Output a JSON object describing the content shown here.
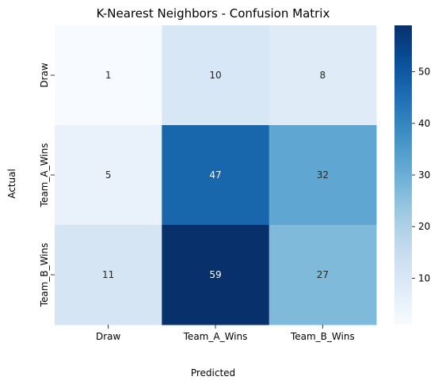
{
  "chart_data": {
    "type": "heatmap",
    "title": "K-Nearest Neighbors - Confusion Matrix",
    "xlabel": "Predicted",
    "ylabel": "Actual",
    "x_categories": [
      "Draw",
      "Team_A_Wins",
      "Team_B_Wins"
    ],
    "y_categories": [
      "Draw",
      "Team_A_Wins",
      "Team_B_Wins"
    ],
    "values": [
      [
        1,
        10,
        8
      ],
      [
        5,
        47,
        32
      ],
      [
        11,
        59,
        27
      ]
    ],
    "colormap": "Blues",
    "value_range": [
      1,
      59
    ],
    "colorbar": {
      "ticks": [
        10,
        20,
        30,
        40,
        50
      ]
    },
    "annotations": true,
    "grid": false
  }
}
